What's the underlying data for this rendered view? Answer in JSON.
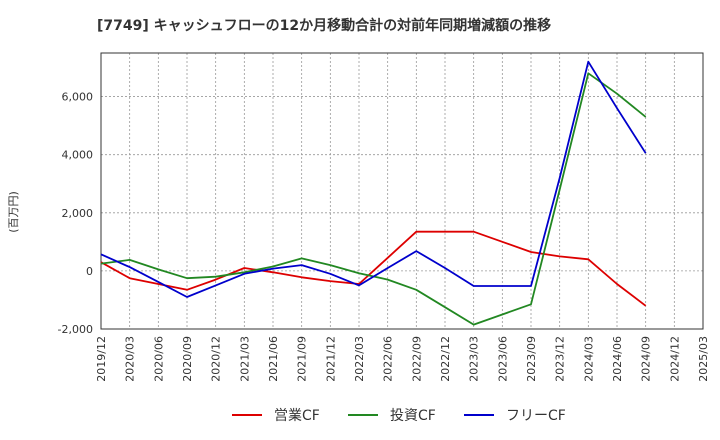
{
  "chart_data": {
    "type": "line",
    "title": "[7749]  キャッシュフローの12か月移動合計の対前年同期増減額の推移",
    "ylabel": "(百万円)",
    "xlabel": "",
    "ylim": [
      -2000,
      7500
    ],
    "yticks": [
      -2000,
      0,
      2000,
      4000,
      6000
    ],
    "ytick_labels": [
      "-2,000",
      "0",
      "2,000",
      "4,000",
      "6,000"
    ],
    "categories": [
      "2019/12",
      "2020/03",
      "2020/06",
      "2020/09",
      "2020/12",
      "2021/03",
      "2021/06",
      "2021/09",
      "2021/12",
      "2022/03",
      "2022/06",
      "2022/09",
      "2022/12",
      "2023/03",
      "2023/06",
      "2023/09",
      "2023/12",
      "2024/03",
      "2024/06",
      "2024/09",
      "2024/12",
      "2025/03"
    ],
    "grid": true,
    "legend_position": "bottom",
    "series": [
      {
        "name": "営業CF",
        "color": "#dd0000",
        "values": [
          300,
          -250,
          -450,
          -650,
          -300,
          100,
          -50,
          -220,
          -350,
          -450,
          450,
          1350,
          1350,
          1350,
          1000,
          650,
          500,
          400,
          -450,
          -1200,
          null,
          null
        ]
      },
      {
        "name": "投資CF",
        "color": "#228822",
        "values": [
          250,
          380,
          50,
          -250,
          -200,
          -50,
          150,
          430,
          200,
          -80,
          -300,
          -650,
          -1250,
          -1850,
          -1500,
          -1150,
          2800,
          6800,
          6100,
          5300,
          null,
          null
        ]
      },
      {
        "name": "フリーCF",
        "color": "#0000cc",
        "values": [
          570,
          130,
          -380,
          -900,
          -500,
          -100,
          80,
          200,
          -100,
          -500,
          100,
          680,
          100,
          -520,
          -520,
          -520,
          3200,
          7200,
          5600,
          4050,
          null,
          null
        ]
      }
    ]
  }
}
